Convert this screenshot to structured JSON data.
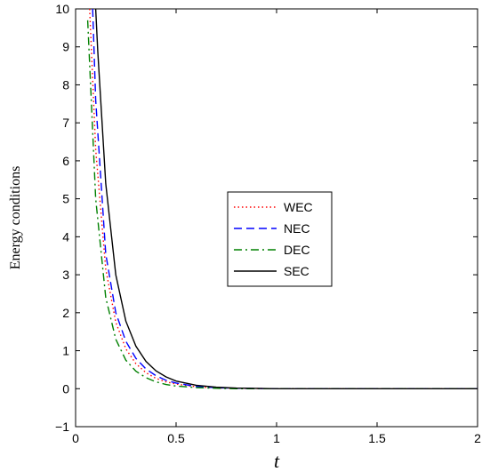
{
  "chart_data": {
    "type": "line",
    "xlabel": "t",
    "ylabel": "Energy conditions",
    "xlim": [
      0,
      2
    ],
    "ylim": [
      -1,
      10
    ],
    "xticks": [
      "0",
      "0.5",
      "1",
      "1.5",
      "2"
    ],
    "yticks": [
      "−1",
      "0",
      "1",
      "2",
      "3",
      "4",
      "5",
      "6",
      "7",
      "8",
      "9",
      "10"
    ],
    "legend_position": "center-right",
    "series": [
      {
        "name": "WEC",
        "color": "#ff0000",
        "dash": "dotted",
        "x": [
          0.07,
          0.1,
          0.15,
          0.2,
          0.25,
          0.3,
          0.35,
          0.4,
          0.45,
          0.5,
          0.6,
          0.7,
          0.8,
          1.0,
          1.5,
          2.0
        ],
        "y": [
          10,
          6.3,
          3.15,
          1.75,
          1.05,
          0.66,
          0.42,
          0.27,
          0.18,
          0.12,
          0.05,
          0.02,
          0.01,
          0.0,
          0.0,
          0.0
        ]
      },
      {
        "name": "NEC",
        "color": "#0000ff",
        "dash": "dashed",
        "x": [
          0.085,
          0.1,
          0.15,
          0.2,
          0.25,
          0.3,
          0.35,
          0.4,
          0.45,
          0.5,
          0.6,
          0.7,
          0.8,
          1.0,
          1.5,
          2.0
        ],
        "y": [
          10,
          7.6,
          3.55,
          2.0,
          1.25,
          0.8,
          0.52,
          0.34,
          0.22,
          0.15,
          0.06,
          0.025,
          0.01,
          0.0,
          0.0,
          0.0
        ]
      },
      {
        "name": "DEC",
        "color": "#008000",
        "dash": "dashdot",
        "x": [
          0.06,
          0.1,
          0.15,
          0.2,
          0.25,
          0.3,
          0.35,
          0.4,
          0.45,
          0.5,
          0.6,
          0.7,
          0.8,
          1.0,
          1.5,
          2.0
        ],
        "y": [
          9.7,
          5.0,
          2.4,
          1.3,
          0.75,
          0.46,
          0.29,
          0.18,
          0.11,
          0.07,
          0.03,
          0.01,
          0.0,
          0.0,
          0.0,
          0.0
        ]
      },
      {
        "name": "SEC",
        "color": "#000000",
        "dash": "solid",
        "x": [
          0.1,
          0.11,
          0.15,
          0.2,
          0.25,
          0.3,
          0.35,
          0.4,
          0.45,
          0.5,
          0.6,
          0.7,
          0.8,
          1.0,
          1.5,
          2.0
        ],
        "y": [
          10,
          8.9,
          5.4,
          3.0,
          1.78,
          1.12,
          0.72,
          0.47,
          0.31,
          0.2,
          0.09,
          0.04,
          0.015,
          0.0,
          0.0,
          0.0
        ]
      }
    ]
  }
}
